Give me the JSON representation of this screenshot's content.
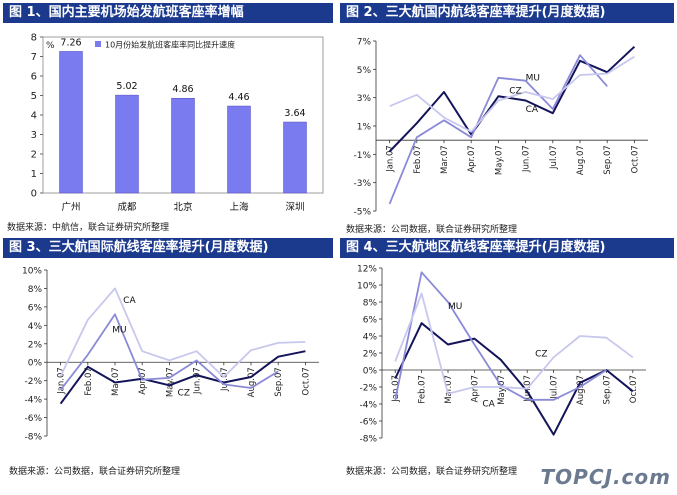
{
  "watermark": "TOPCJ.com",
  "chart_data": [
    {
      "id": "c1",
      "type": "bar",
      "title": "图 1、国内主要机场始发航班客座率增幅",
      "unit_label": "%",
      "legend": "10月份始发航班客座率同比提升速度",
      "categories": [
        "广州",
        "成都",
        "北京",
        "上海",
        "深圳"
      ],
      "values": [
        7.26,
        5.02,
        4.86,
        4.46,
        3.64
      ],
      "data_labels": [
        "7.26",
        "5.02",
        "4.86",
        "4.46",
        "3.64"
      ],
      "ylim": [
        0,
        8
      ],
      "yticks": [
        "0",
        "1",
        "2",
        "3",
        "4",
        "5",
        "6",
        "7",
        "8"
      ],
      "colors": {
        "bar": "#7b7bf0"
      },
      "source": "数据来源：中航信，联合证券研究所整理"
    },
    {
      "id": "c2",
      "type": "line",
      "title": "图 2、三大航国内航线客座率提升(月度数据)",
      "categories": [
        "Jan.07",
        "Feb.07",
        "Mar.07",
        "Apr.07",
        "May.07",
        "Jun.07",
        "Jul.07",
        "Aug.07",
        "Sep.07",
        "Oct.07"
      ],
      "ylim": [
        -5,
        7
      ],
      "yticks": [
        "-5%",
        "-3%",
        "-1%",
        "1%",
        "3%",
        "5%",
        "7%"
      ],
      "ytick_values": [
        -5,
        -3,
        -1,
        1,
        3,
        5,
        7
      ],
      "series": [
        {
          "name": "CA",
          "color": "#14145a",
          "values": [
            -0.8,
            1.2,
            3.4,
            0.4,
            3.1,
            2.8,
            1.9,
            5.6,
            4.8,
            6.6
          ]
        },
        {
          "name": "CZ",
          "color": "#8a8ad8",
          "values": [
            -4.5,
            0.2,
            1.4,
            0.2,
            4.4,
            4.2,
            2.2,
            6.0,
            3.8,
            null
          ]
        },
        {
          "name": "MU",
          "color": "#c8c8ee",
          "values": [
            2.4,
            3.2,
            1.6,
            0.6,
            2.8,
            3.4,
            2.9,
            4.6,
            4.7,
            5.9
          ]
        }
      ],
      "labels": [
        {
          "text": "MU",
          "i": 5.0,
          "v": 4.2
        },
        {
          "text": "CZ",
          "i": 4.4,
          "v": 3.3
        },
        {
          "text": "CA",
          "i": 5.0,
          "v": 2.0
        }
      ],
      "source": "数据来源：公司数据，联合证券研究所整理"
    },
    {
      "id": "c3",
      "type": "line",
      "title": "图 3、三大航国际航线客座率提升(月度数据)",
      "categories": [
        "Jan.07",
        "Feb.07",
        "Mar.07",
        "Apr.07",
        "May.07",
        "Jun.07",
        "Jul.07",
        "Aug.07",
        "Sep.07",
        "Oct.07"
      ],
      "ylim": [
        -8,
        10
      ],
      "yticks": [
        "-8%",
        "-6%",
        "-4%",
        "-2%",
        "0%",
        "2%",
        "4%",
        "6%",
        "8%",
        "10%"
      ],
      "ytick_values": [
        -8,
        -6,
        -4,
        -2,
        0,
        2,
        4,
        6,
        8,
        10
      ],
      "series": [
        {
          "name": "CZ",
          "color": "#14145a",
          "values": [
            -4.5,
            -0.5,
            -2.2,
            -1.8,
            -2.5,
            -1.4,
            -2.2,
            -1.6,
            0.6,
            1.2
          ]
        },
        {
          "name": "MU",
          "color": "#8a8ad8",
          "values": [
            -3.0,
            0.8,
            5.2,
            -1.9,
            -1.7,
            0.2,
            -2.4,
            -2.8,
            -1.0,
            null
          ]
        },
        {
          "name": "CA",
          "color": "#c8c8ee",
          "values": [
            -1.5,
            4.6,
            8.0,
            1.2,
            0.2,
            1.2,
            -1.6,
            1.3,
            2.1,
            2.2
          ]
        }
      ],
      "labels": [
        {
          "text": "CA",
          "i": 2.3,
          "v": 6.4
        },
        {
          "text": "MU",
          "i": 1.9,
          "v": 3.2
        },
        {
          "text": "CZ",
          "i": 4.3,
          "v": -3.6
        }
      ],
      "source": "数据来源：公司数据，联合证券研究所整理"
    },
    {
      "id": "c4",
      "type": "line",
      "title": "图 4、三大航地区航线客座率提升(月度数据)",
      "categories": [
        "Jan.07",
        "Feb.07",
        "Mar.07",
        "Apr.07",
        "May.07",
        "Jun.07",
        "Jul.07",
        "Aug.07",
        "Sep.07",
        "Oct.07"
      ],
      "ylim": [
        -8,
        12
      ],
      "yticks": [
        "-8%",
        "-6%",
        "-4%",
        "-2%",
        "0%",
        "2%",
        "4%",
        "6%",
        "8%",
        "10%",
        "12%"
      ],
      "ytick_values": [
        -8,
        -6,
        -4,
        -2,
        0,
        2,
        4,
        6,
        8,
        10,
        12
      ],
      "series": [
        {
          "name": "CZ",
          "color": "#14145a",
          "values": [
            -1.0,
            5.5,
            3.0,
            3.7,
            1.2,
            -2.5,
            -7.6,
            -1.5,
            0.0,
            -2.5
          ]
        },
        {
          "name": "MU",
          "color": "#8a8ad8",
          "values": [
            -3.5,
            11.5,
            8.0,
            3.0,
            -1.8,
            -3.5,
            -3.5,
            -2.0,
            0.0,
            null
          ]
        },
        {
          "name": "CA",
          "color": "#c8c8ee",
          "values": [
            1.0,
            9.0,
            -2.8,
            -2.0,
            -2.0,
            -2.2,
            1.5,
            4.0,
            3.8,
            1.5
          ]
        }
      ],
      "labels": [
        {
          "text": "MU",
          "i": 2.0,
          "v": 7.2
        },
        {
          "text": "CZ",
          "i": 5.3,
          "v": 1.6
        },
        {
          "text": "CA",
          "i": 3.3,
          "v": -4.3
        }
      ],
      "source": "数据来源：公司数据，联合证券研究所整理"
    }
  ]
}
